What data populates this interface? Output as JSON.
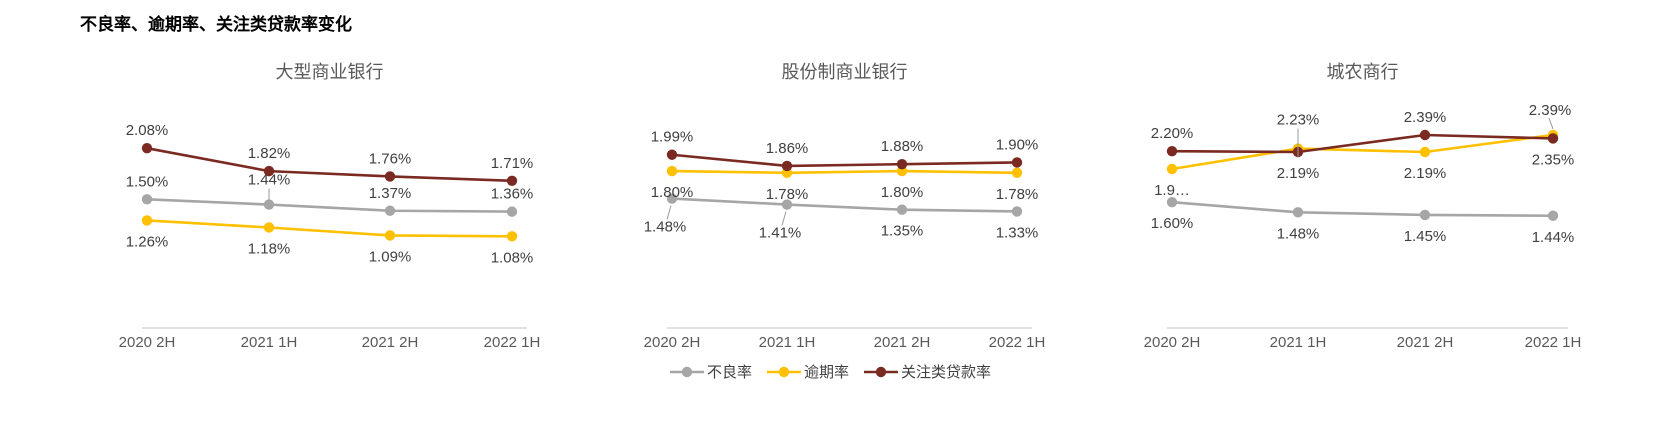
{
  "title": "不良率、逾期率、关注类贷款率变化",
  "colors": {
    "npl_gray": "#a6a6a6",
    "overdue_gold": "#ffc000",
    "special_maroon": "#7b2a22",
    "data_label": "#404040",
    "axis_line": "#d9d9d9",
    "subtitle": "#595959",
    "leader": "#999999",
    "title_text": "#000000"
  },
  "legend": [
    {
      "label": "不良率",
      "color": "#a6a6a6"
    },
    {
      "label": "逾期率",
      "color": "#ffc000"
    },
    {
      "label": "关注类贷款率",
      "color": "#7b2a22"
    }
  ],
  "chart_data": [
    {
      "type": "line",
      "title": "大型商业银行",
      "categories": [
        "2020 2H",
        "2021 1H",
        "2021 2H",
        "2022 1H"
      ],
      "ylim": [
        0.3,
        2.23
      ],
      "x_centers": [
        147,
        269,
        390,
        512
      ],
      "grid": false,
      "series": [
        {
          "name": "不良率",
          "color": "#a6a6a6",
          "values": [
            1.5,
            1.44,
            1.37,
            1.36
          ],
          "labels": [
            "1.50%",
            "1.44%",
            "1.37%",
            "1.36%"
          ],
          "label_pos": [
            "above",
            "above-leader",
            "above",
            "above"
          ]
        },
        {
          "name": "逾期率",
          "color": "#ffc000",
          "values": [
            1.26,
            1.18,
            1.09,
            1.08
          ],
          "labels": [
            "1.26%",
            "1.18%",
            "1.09%",
            "1.08%"
          ],
          "label_pos": [
            "below",
            "below",
            "below",
            "below"
          ]
        },
        {
          "name": "关注类贷款率",
          "color": "#7b2a22",
          "values": [
            2.08,
            1.82,
            1.76,
            1.71
          ],
          "labels": [
            "2.08%",
            "1.82%",
            "1.76%",
            "1.71%"
          ],
          "label_pos": [
            "above",
            "above",
            "above",
            "above"
          ]
        }
      ]
    },
    {
      "type": "line",
      "title": "股份制商业银行",
      "categories": [
        "2020 2H",
        "2021 1H",
        "2021 2H",
        "2022 1H"
      ],
      "ylim": [
        0.24,
        2.22
      ],
      "x_centers": [
        672,
        787,
        902,
        1017
      ],
      "grid": false,
      "series": [
        {
          "name": "不良率",
          "color": "#a6a6a6",
          "values": [
            1.48,
            1.41,
            1.35,
            1.33
          ],
          "labels": [
            "1.48%",
            "1.41%",
            "1.35%",
            "1.33%"
          ],
          "label_pos": [
            "below-leader",
            "below-leader",
            "below",
            "below"
          ]
        },
        {
          "name": "逾期率",
          "color": "#ffc000",
          "values": [
            1.8,
            1.78,
            1.8,
            1.78
          ],
          "labels": [
            "1.80%",
            "1.78%",
            "1.80%",
            "1.78%"
          ],
          "label_pos": [
            "below",
            "below",
            "below",
            "below"
          ]
        },
        {
          "name": "关注类贷款率",
          "color": "#7b2a22",
          "values": [
            1.99,
            1.86,
            1.88,
            1.9
          ],
          "labels": [
            "1.99%",
            "1.86%",
            "1.88%",
            "1.90%"
          ],
          "label_pos": [
            "above",
            "above",
            "above",
            "above"
          ]
        }
      ]
    },
    {
      "type": "line",
      "title": "城农商行",
      "categories": [
        "2020 2H",
        "2021 1H",
        "2021 2H",
        "2022 1H"
      ],
      "ylim": [
        0.39,
        2.39
      ],
      "x_centers": [
        1172,
        1298,
        1425,
        1553
      ],
      "grid": false,
      "series": [
        {
          "name": "不良率",
          "color": "#a6a6a6",
          "values": [
            1.6,
            1.48,
            1.45,
            1.44
          ],
          "labels": [
            "1.60%",
            "1.48%",
            "1.45%",
            "1.44%"
          ],
          "label_pos": [
            "below",
            "below",
            "below",
            "below"
          ]
        },
        {
          "name": "逾期率",
          "color": "#ffc000",
          "values": [
            1.99,
            2.23,
            2.19,
            2.39
          ],
          "labels": [
            "1.9…",
            "2.23%",
            "2.19%",
            "2.39%"
          ],
          "label_pos": [
            "below",
            "above-leader-through",
            "below",
            "above-right-leader"
          ]
        },
        {
          "name": "关注类贷款率",
          "color": "#7b2a22",
          "values": [
            2.2,
            2.19,
            2.39,
            2.35
          ],
          "labels": [
            "2.20%",
            "2.19%",
            "2.39%",
            "2.35%"
          ],
          "label_pos": [
            "above",
            "below",
            "above",
            "below"
          ]
        }
      ]
    }
  ]
}
